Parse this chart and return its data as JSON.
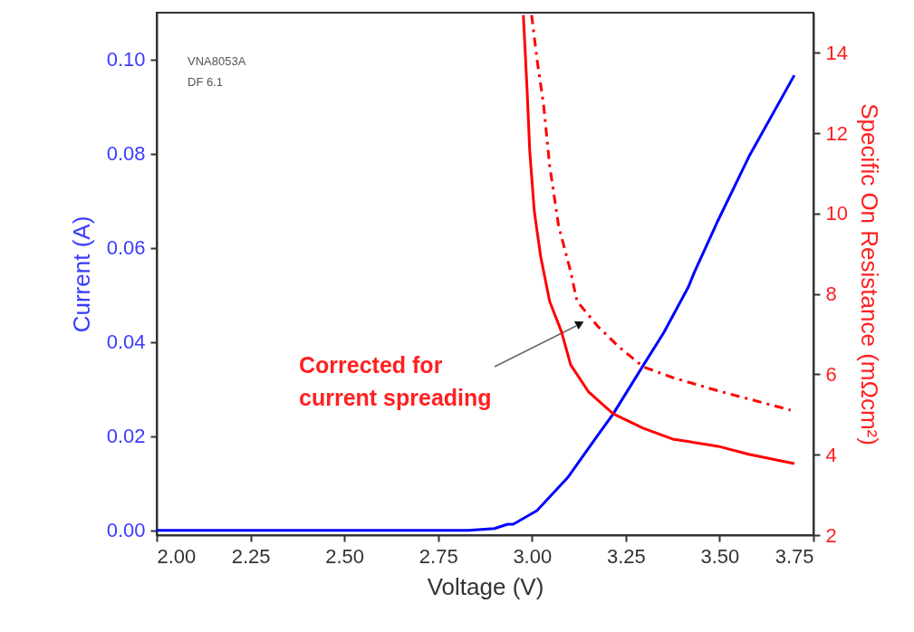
{
  "chart_data": {
    "type": "line",
    "xlabel": "Voltage (V)",
    "ylabel": "Current (A)",
    "y2label": "Specific On Resistance (mΩcm²)",
    "xlim": [
      2.0,
      3.75
    ],
    "xticks": [
      {
        "value": 2.0,
        "label": "2.00"
      },
      {
        "value": 2.25,
        "label": "2.25"
      },
      {
        "value": 2.5,
        "label": "2.50"
      },
      {
        "value": 2.75,
        "label": "2.75"
      },
      {
        "value": 3.0,
        "label": "3.00"
      },
      {
        "value": 3.25,
        "label": "3.25"
      },
      {
        "value": 3.5,
        "label": "3.50"
      },
      {
        "value": 3.75,
        "label": "3.75"
      }
    ],
    "ylim": [
      -0.001,
      0.11
    ],
    "yticks": [
      {
        "value": 0,
        "label": "0.00"
      },
      {
        "value": 0.02,
        "label": "0.02"
      },
      {
        "value": 0.04,
        "label": "0.04"
      },
      {
        "value": 0.06,
        "label": "0.06"
      },
      {
        "value": 0.08,
        "label": "0.08"
      },
      {
        "value": 0.1,
        "label": "0.10"
      }
    ],
    "y2lim": [
      2,
      15
    ],
    "y2ticks": [
      2,
      4,
      6,
      8,
      10,
      12,
      14
    ],
    "grid": false,
    "marker": "none",
    "series": [
      {
        "type": "line",
        "color": "#0000ff",
        "line_style": "solid",
        "x": [
          2.0,
          2.5,
          2.83,
          2.9,
          2.935,
          2.95,
          3.013,
          3.095,
          3.175,
          3.216,
          3.296,
          3.351,
          3.416,
          3.433,
          3.496,
          3.578,
          3.699
        ],
        "values": [
          0,
          0,
          0,
          0.0004,
          0.0013,
          0.0013,
          0.0042,
          0.0112,
          0.0202,
          0.0247,
          0.035,
          0.042,
          0.0516,
          0.0549,
          0.0659,
          0.0794,
          0.0967
        ]
      },
      {
        "type": "line",
        "color": "#ff0000",
        "line_style": "solid",
        "axis": "y2",
        "x": [
          2.977,
          2.987,
          2.994,
          3.006,
          3.023,
          3.047,
          3.079,
          3.103,
          3.151,
          3.216,
          3.296,
          3.375,
          3.496,
          3.578,
          3.699
        ],
        "values": [
          14.94,
          13.07,
          11.56,
          10.07,
          8.94,
          7.82,
          7.05,
          6.24,
          5.56,
          5.02,
          4.66,
          4.39,
          4.21,
          4.01,
          3.78
        ]
      },
      {
        "type": "line",
        "color": "#ff0000",
        "line_style": "dashed",
        "axis": "y2",
        "x": [
          2.999,
          3.014,
          3.031,
          3.047,
          3.071,
          3.103,
          3.12,
          3.175,
          3.231,
          3.296,
          3.375,
          3.496,
          3.617,
          3.689
        ],
        "values": [
          14.94,
          13.8,
          12.7,
          11.2,
          9.69,
          8.56,
          7.82,
          7.2,
          6.69,
          6.19,
          5.92,
          5.59,
          5.29,
          5.11
        ]
      }
    ],
    "annotations": [
      "VNA8053A",
      "DF 6.1",
      "Corrected for\ncurrent spreading"
    ]
  }
}
